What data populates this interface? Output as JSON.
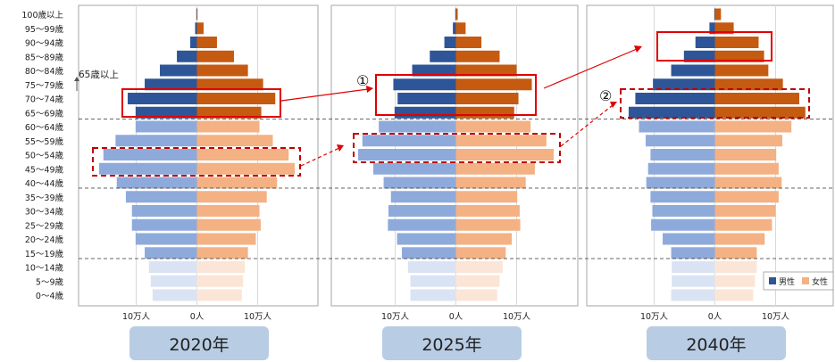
{
  "age_groups": [
    "100歳以上",
    "95〜99歳",
    "90〜94歳",
    "85〜89歳",
    "80〜84歳",
    "75〜79歳",
    "70〜74歳",
    "65〜69歳",
    "60〜64歳",
    "55〜59歳",
    "50〜54歳",
    "45〜49歳",
    "40〜44歳",
    "35〜39歳",
    "30〜34歳",
    "25〜29歳",
    "20〜24歳",
    "15〜19歳",
    "10〜14歳",
    "5〜9歳",
    "0〜4歳"
  ],
  "annotations": {
    "over65_label": "65歳以上",
    "marker_1": "①",
    "marker_2": "②"
  },
  "legend": {
    "male": "男性",
    "female": "女性"
  },
  "colors": {
    "male_elderly": "#2e5597",
    "female_elderly": "#c55a11",
    "male_working": "#8eaadb",
    "female_working": "#f4b183",
    "male_youth": "#dae3f3",
    "female_youth": "#fbe5d6",
    "highlight_red": "#e00000",
    "year_tag_bg": "#b8cce4"
  },
  "chart_data": [
    {
      "type": "bar",
      "orientation": "horizontal population pyramid",
      "title": "2020年",
      "categories": [
        "100歳以上",
        "95〜99歳",
        "90〜94歳",
        "85〜89歳",
        "80〜84歳",
        "75〜79歳",
        "70〜74歳",
        "65〜69歳",
        "60〜64歳",
        "55〜59歳",
        "50〜54歳",
        "45〜49歳",
        "40〜44歳",
        "35〜39歳",
        "30〜34歳",
        "25〜29歳",
        "20〜24歳",
        "15〜19歳",
        "10〜14歳",
        "5〜9歳",
        "0〜4歳"
      ],
      "series": [
        {
          "name": "男性",
          "values": [
            0.1,
            0.3,
            1.1,
            3.3,
            6.1,
            8.6,
            11.4,
            10.1,
            10.1,
            13.4,
            15.4,
            16.1,
            13.2,
            11.7,
            10.7,
            10.7,
            10.1,
            8.6,
            7.9,
            7.6,
            7.3
          ]
        },
        {
          "name": "女性",
          "values": [
            0.1,
            1.1,
            3.3,
            6.1,
            8.4,
            10.9,
            12.9,
            10.6,
            10.3,
            12.5,
            15.1,
            16.1,
            13.2,
            11.5,
            10.3,
            10.5,
            9.7,
            8.4,
            7.9,
            7.6,
            7.4
          ]
        }
      ],
      "xlabel_ticks": [
        "10万人",
        "0人",
        "10万人"
      ],
      "xlim": [
        -17,
        17
      ]
    },
    {
      "type": "bar",
      "orientation": "horizontal population pyramid",
      "title": "2025年",
      "categories": [
        "100歳以上",
        "95〜99歳",
        "90〜94歳",
        "85〜89歳",
        "80〜84歳",
        "75〜79歳",
        "70〜74歳",
        "65〜69歳",
        "60〜64歳",
        "55〜59歳",
        "50〜54歳",
        "45〜49歳",
        "40〜44歳",
        "35〜39歳",
        "30〜34歳",
        "25〜29歳",
        "20〜24歳",
        "15〜19歳",
        "10〜14歳",
        "5〜9歳",
        "0〜4歳"
      ],
      "series": [
        {
          "name": "男性",
          "values": [
            0.1,
            0.5,
            1.9,
            4.3,
            7.2,
            10.3,
            9.6,
            10.1,
            12.7,
            15.4,
            16.1,
            13.6,
            11.9,
            10.7,
            11.1,
            11.2,
            9.7,
            8.9,
            7.9,
            7.5,
            7.5
          ]
        },
        {
          "name": "女性",
          "values": [
            0.3,
            1.6,
            4.2,
            7.2,
            10.0,
            12.5,
            10.3,
            9.6,
            12.3,
            14.9,
            16.1,
            13.0,
            11.5,
            10.1,
            10.5,
            10.6,
            9.2,
            8.2,
            7.7,
            7.2,
            6.8
          ]
        }
      ],
      "xlabel_ticks": [
        "10万人",
        "0人",
        "10万人"
      ],
      "xlim": [
        -17,
        17
      ]
    },
    {
      "type": "bar",
      "orientation": "horizontal population pyramid",
      "title": "2040年",
      "categories": [
        "100歳以上",
        "95〜99歳",
        "90〜94歳",
        "85〜89歳",
        "80〜84歳",
        "75〜79歳",
        "70〜74歳",
        "65〜69歳",
        "60〜64歳",
        "55〜59歳",
        "50〜54歳",
        "45〜49歳",
        "40〜44歳",
        "35〜39歳",
        "30〜34歳",
        "25〜29歳",
        "20〜24歳",
        "15〜19歳",
        "10〜14歳",
        "5〜9歳",
        "0〜4歳"
      ],
      "series": [
        {
          "name": "男性",
          "values": [
            0.1,
            0.9,
            3.2,
            5.1,
            7.2,
            10.2,
            13.1,
            14.2,
            12.5,
            11.4,
            10.6,
            11.0,
            11.3,
            10.6,
            10.3,
            10.5,
            8.6,
            7.2,
            7.1,
            7.1,
            7.2
          ]
        },
        {
          "name": "女性",
          "values": [
            1.0,
            3.1,
            7.2,
            8.1,
            8.8,
            11.2,
            13.9,
            14.9,
            12.6,
            11.1,
            10.1,
            10.5,
            11.0,
            10.5,
            10.0,
            9.4,
            8.2,
            6.9,
            6.9,
            6.6,
            6.3
          ]
        }
      ],
      "xlabel_ticks": [
        "10万人",
        "0人",
        "10万人"
      ],
      "xlim": [
        -17,
        17
      ]
    }
  ]
}
